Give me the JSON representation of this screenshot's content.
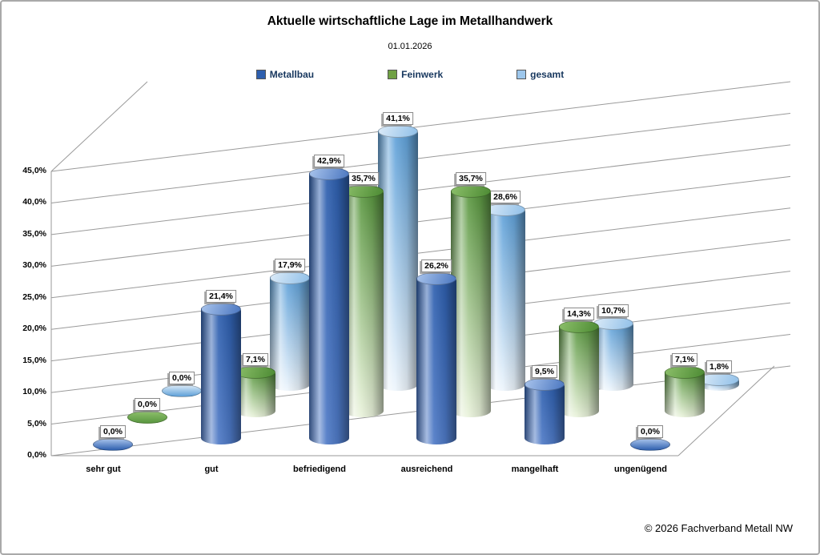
{
  "chart_data": {
    "type": "bar",
    "variant": "3d-cylinder",
    "title": "Aktuelle wirtschaftliche Lage im Metallhandwerk",
    "subtitle": "01.01.2026",
    "grid": true,
    "grid_color": "#9a9a9a",
    "legend_position": "top",
    "ylim": [
      0,
      45
    ],
    "y_ticks": [
      "0,0%",
      "5,0%",
      "10,0%",
      "15,0%",
      "20,0%",
      "25,0%",
      "30,0%",
      "35,0%",
      "40,0%",
      "45,0%"
    ],
    "categories": [
      "sehr gut",
      "gut",
      "befriedigend",
      "ausreichend",
      "mangelhaft",
      "ungenügend"
    ],
    "series": [
      {
        "name": "Metallbau",
        "values": [
          0,
          21.4,
          42.9,
          26.2,
          9.5,
          0
        ],
        "labels": [
          "0,0%",
          "21,4%",
          "42,9%",
          "26,2%",
          "9,5%",
          "0,0%"
        ],
        "colors": {
          "legend": "#2e5fae",
          "body_top": "#2e5fae",
          "body_bottom": "#4f7ac6",
          "cap_light": "#a9c4ec",
          "cap_dark": "#4a76c0"
        }
      },
      {
        "name": "Feinwerk",
        "values": [
          0,
          7.1,
          35.7,
          35.7,
          14.3,
          7.1
        ],
        "labels": [
          "0,0%",
          "7,1%",
          "35,7%",
          "35,7%",
          "14,3%",
          "7,1%"
        ],
        "colors": {
          "legend": "#70a144",
          "body_top": "#5a9740",
          "body_bottom": "#eaf3dc",
          "cap_light": "#8cbf6a",
          "cap_dark": "#4c8a33"
        }
      },
      {
        "name": "gesamt",
        "values": [
          0,
          17.9,
          41.1,
          28.6,
          10.7,
          1.8
        ],
        "labels": [
          "0,0%",
          "17,9%",
          "41,1%",
          "28,6%",
          "10,7%",
          "1,8%"
        ],
        "colors": {
          "legend": "#9dc7ec",
          "body_top": "#5ea0d8",
          "body_bottom": "#edf5fc",
          "cap_light": "#dcebf8",
          "cap_dark": "#8fbfe8"
        }
      }
    ]
  },
  "footer": {
    "copyright": "© 2026 Fachverband Metall NW"
  }
}
